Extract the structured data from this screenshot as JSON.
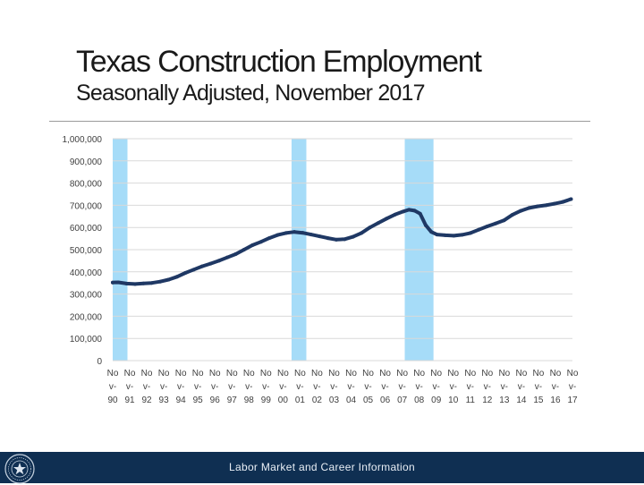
{
  "header": {
    "title": "Texas Construction Employment",
    "subtitle": "Seasonally Adjusted, November 2017"
  },
  "footer": {
    "text": "Labor Market and Career Information"
  },
  "colors": {
    "line": "#1f3864",
    "recession": "#a6dcf8",
    "grid": "#d9d9d9",
    "footer_bg": "#0f2f52"
  },
  "chart_data": {
    "type": "line",
    "title": "Texas Construction Employment",
    "subtitle": "Seasonally Adjusted, November 2017",
    "xlabel": "",
    "ylabel": "",
    "ylim": [
      0,
      1000000
    ],
    "y_ticks": [
      0,
      100000,
      200000,
      300000,
      400000,
      500000,
      600000,
      700000,
      800000,
      900000,
      1000000
    ],
    "y_tick_labels": [
      "0",
      "100,000",
      "200,000",
      "300,000",
      "400,000",
      "500,000",
      "600,000",
      "700,000",
      "800,000",
      "900,000",
      "1,000,000"
    ],
    "x_tick_labels": [
      "Nov-90",
      "Nov-91",
      "Nov-92",
      "Nov-93",
      "Nov-94",
      "Nov-95",
      "Nov-96",
      "Nov-97",
      "Nov-98",
      "Nov-99",
      "Nov-00",
      "Nov-01",
      "Nov-02",
      "Nov-03",
      "Nov-04",
      "Nov-05",
      "Nov-06",
      "Nov-07",
      "Nov-08",
      "Nov-09",
      "Nov-10",
      "Nov-11",
      "Nov-12",
      "Nov-13",
      "Nov-14",
      "Nov-15",
      "Nov-16",
      "Nov-17"
    ],
    "grid": true,
    "recessions": [
      {
        "start": "1990-07",
        "end": "1991-03"
      },
      {
        "start": "2001-03",
        "end": "2001-11"
      },
      {
        "start": "2007-12",
        "end": "2009-06"
      }
    ],
    "series": [
      {
        "x": [
          "1990-07",
          "1990-11",
          "1991-05",
          "1991-11",
          "1992-05",
          "1992-11",
          "1993-05",
          "1993-11",
          "1994-05",
          "1994-11",
          "1995-05",
          "1995-11",
          "1996-05",
          "1996-11",
          "1997-05",
          "1997-11",
          "1998-05",
          "1998-11",
          "1999-05",
          "1999-11",
          "2000-05",
          "2000-11",
          "2001-05",
          "2001-11",
          "2002-05",
          "2002-11",
          "2003-05",
          "2003-11",
          "2004-05",
          "2004-11",
          "2005-05",
          "2005-11",
          "2006-05",
          "2006-11",
          "2007-05",
          "2007-11",
          "2008-03",
          "2008-07",
          "2008-11",
          "2009-03",
          "2009-07",
          "2009-11",
          "2010-05",
          "2010-11",
          "2011-05",
          "2011-11",
          "2012-05",
          "2012-11",
          "2013-05",
          "2013-11",
          "2014-05",
          "2014-11",
          "2015-05",
          "2015-11",
          "2016-05",
          "2016-11",
          "2017-05",
          "2017-11"
        ],
        "values": [
          352000,
          353000,
          347000,
          345000,
          348000,
          350000,
          356000,
          365000,
          378000,
          395000,
          410000,
          425000,
          437000,
          450000,
          465000,
          480000,
          500000,
          520000,
          535000,
          552000,
          566000,
          575000,
          580000,
          576000,
          568000,
          560000,
          552000,
          545000,
          547000,
          558000,
          575000,
          600000,
          620000,
          640000,
          658000,
          672000,
          680000,
          676000,
          662000,
          610000,
          580000,
          568000,
          565000,
          563000,
          567000,
          575000,
          590000,
          605000,
          618000,
          632000,
          657000,
          675000,
          688000,
          695000,
          700000,
          707000,
          715000,
          728000
        ]
      }
    ]
  }
}
